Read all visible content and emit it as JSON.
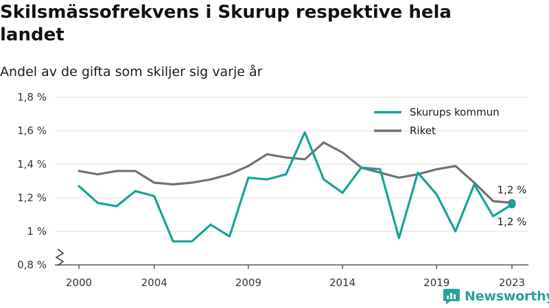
{
  "title": "Skilsmässofrekvens i Skurup respektive hela landet",
  "subtitle": "Andel av de gifta som skiljer sig varje år",
  "brand": {
    "name": "Newsworthy",
    "icon": "newsworthy-logo-icon"
  },
  "colors": {
    "skurup": "#14a396",
    "riket": "#707070",
    "grid": "#dddddd",
    "brand": "#2aa198"
  },
  "chart_data": {
    "type": "line",
    "title": "Skilsmässofrekvens i Skurup respektive hela landet",
    "subtitle": "Andel av de gifta som skiljer sig varje år",
    "xlabel": "",
    "ylabel": "",
    "x": [
      2000,
      2001,
      2002,
      2003,
      2004,
      2005,
      2006,
      2007,
      2008,
      2009,
      2010,
      2011,
      2012,
      2013,
      2014,
      2015,
      2016,
      2017,
      2018,
      2019,
      2020,
      2021,
      2022,
      2023
    ],
    "x_tick_values": [
      2000,
      2004,
      2009,
      2014,
      2019,
      2023
    ],
    "x_tick_labels": [
      "2000",
      "2004",
      "2009",
      "2014",
      "2019",
      "2023"
    ],
    "ylim": [
      0.8,
      1.8
    ],
    "y_tick_values": [
      0.8,
      1.0,
      1.2,
      1.4,
      1.6,
      1.8
    ],
    "y_tick_labels": [
      "0,8 %",
      "1 %",
      "1,2 %",
      "1,4 %",
      "1,6 %",
      "1,8 %"
    ],
    "axis_break": true,
    "grid": true,
    "legend": "top-right",
    "series": [
      {
        "name": "Skurups kommun",
        "color": "#14a396",
        "values": [
          1.27,
          1.17,
          1.15,
          1.24,
          1.21,
          0.94,
          0.94,
          1.04,
          0.97,
          1.32,
          1.31,
          1.34,
          1.59,
          1.31,
          1.23,
          1.38,
          1.37,
          0.96,
          1.35,
          1.22,
          1.0,
          1.28,
          1.09,
          1.16
        ],
        "end_label": "1,2 %"
      },
      {
        "name": "Riket",
        "color": "#707070",
        "values": [
          1.36,
          1.34,
          1.36,
          1.36,
          1.29,
          1.28,
          1.29,
          1.31,
          1.34,
          1.39,
          1.46,
          1.44,
          1.43,
          1.53,
          1.47,
          1.38,
          1.35,
          1.32,
          1.34,
          1.37,
          1.39,
          1.29,
          1.18,
          1.17
        ],
        "end_label": "1,2 %"
      }
    ]
  }
}
